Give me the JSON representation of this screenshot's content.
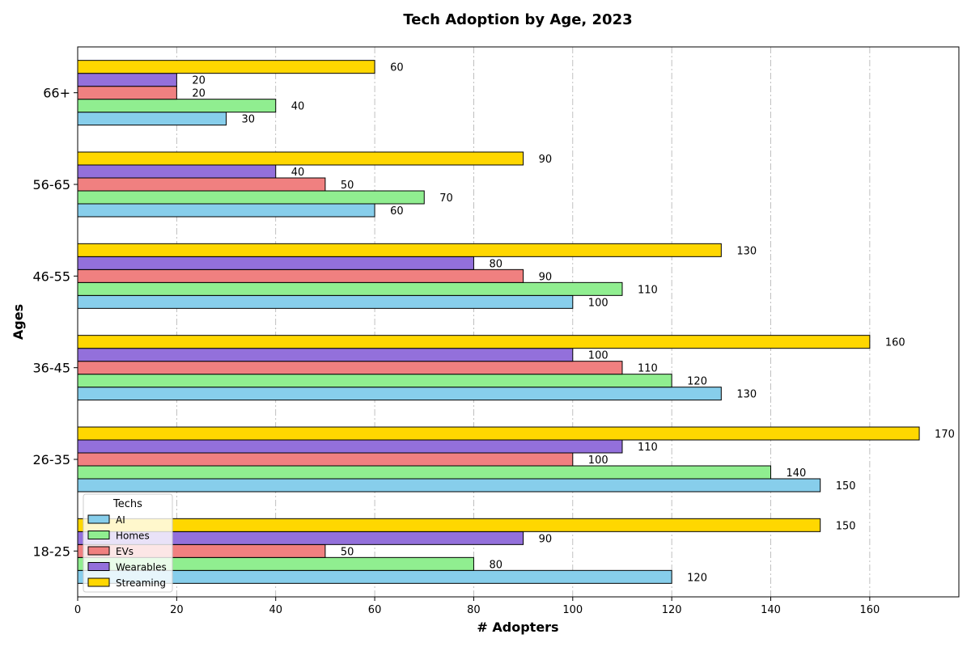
{
  "chart_data": {
    "type": "bar",
    "orientation": "horizontal",
    "title": "Tech Adoption by Age, 2023",
    "xlabel": "# Adopters",
    "ylabel": "Ages",
    "xlim": [
      0,
      178
    ],
    "xticks": [
      0,
      20,
      40,
      60,
      80,
      100,
      120,
      140,
      160
    ],
    "grid": "x",
    "categories": [
      "18-25",
      "26-35",
      "36-45",
      "46-55",
      "56-65",
      "66+"
    ],
    "legend": {
      "title": "Techs",
      "placement": "lower-left"
    },
    "series": [
      {
        "name": "AI",
        "color": "#87ceeb",
        "values": [
          120,
          150,
          130,
          100,
          60,
          30
        ]
      },
      {
        "name": "Homes",
        "color": "#90ee90",
        "values": [
          80,
          140,
          120,
          110,
          70,
          40
        ]
      },
      {
        "name": "EVs",
        "color": "#f08080",
        "values": [
          50,
          100,
          110,
          90,
          50,
          20
        ]
      },
      {
        "name": "Wearables",
        "color": "#9370db",
        "values": [
          90,
          110,
          100,
          80,
          40,
          20
        ]
      },
      {
        "name": "Streaming",
        "color": "#ffd700",
        "values": [
          150,
          170,
          160,
          130,
          90,
          60
        ]
      }
    ]
  }
}
